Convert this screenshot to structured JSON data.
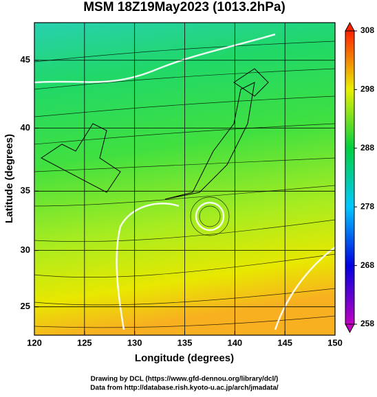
{
  "chart_data": {
    "type": "map",
    "title": "MSM 18Z19May2023 (1013.2hPa)",
    "x_label": "Longitude (degrees)",
    "y_label": "Latitude  (degrees)",
    "xlim": [
      120,
      150
    ],
    "xticks": [
      120,
      125,
      130,
      135,
      140,
      145,
      150
    ],
    "ylim": [
      22.4,
      47.6
    ],
    "yticks": [
      25,
      30,
      35,
      40,
      45
    ],
    "projection": "mercator",
    "grid": true,
    "colorbar": {
      "lim": [
        258,
        308
      ],
      "ticks": [
        258,
        268,
        278,
        288,
        298,
        308
      ],
      "colors": [
        "#c000c0",
        "#0000e0",
        "#00c8ff",
        "#00d040",
        "#e8f000",
        "#ff2000"
      ]
    },
    "footer": [
      "Drawing by DCL (https://www.gfd-dennou.org/library/dcl/)",
      "Data from http://database.rish.kyoto-u.ac.jp/arch/jmadata/"
    ]
  }
}
